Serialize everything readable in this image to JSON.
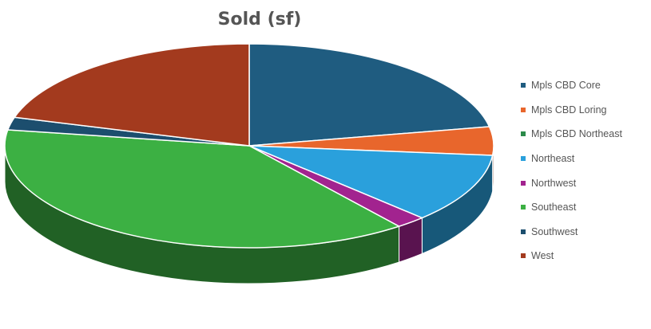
{
  "chart_data": {
    "type": "pie",
    "title": "Sold (sf)",
    "legend_position": "right",
    "three_d": true,
    "categories": [
      "Mpls CBD Core",
      "Mpls CBD Loring",
      "Mpls CBD Northeast",
      "Northeast",
      "Northwest",
      "Southeast",
      "Southwest",
      "West"
    ],
    "values": [
      22,
      4.5,
      0,
      11,
      2,
      38,
      2,
      20.5
    ],
    "colors": [
      "#1f5c80",
      "#e8662c",
      "#2b8a4a",
      "#2aa0dc",
      "#a2238f",
      "#3cb043",
      "#1c4e6e",
      "#a33a1e"
    ]
  }
}
